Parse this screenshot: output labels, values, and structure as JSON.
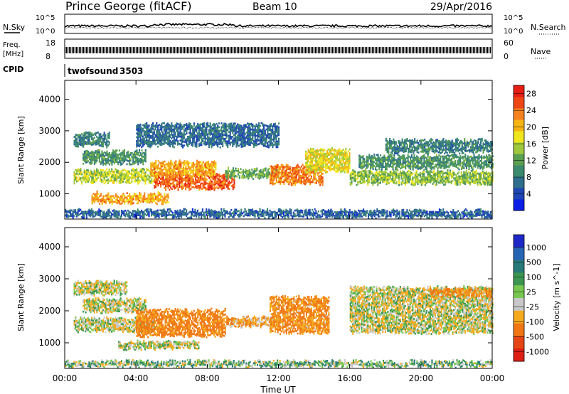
{
  "header": {
    "station": "Prince George (fitACF)",
    "beam": "Beam 10",
    "date": "29/Apr/2016"
  },
  "noise_panel": {
    "left_label": "N.Sky",
    "left_ticks": [
      "10^5",
      "10^0"
    ],
    "right_ticks": [
      "10^5",
      "10^0"
    ],
    "right_label": "N.Search"
  },
  "freq_panel": {
    "label_line1": "Freq.",
    "label_line2": "[MHz]",
    "left_ticks": [
      "18",
      "8"
    ],
    "right_ticks": [
      "60",
      "0"
    ],
    "right_label": "Nave"
  },
  "cpid": {
    "label": "CPID",
    "name": "twofsound",
    "value": "3503"
  },
  "colors": {
    "power": [
      "#0a1ee6",
      "#1e46b4",
      "#2f6e8c",
      "#3c8a6e",
      "#5aa050",
      "#a0c83c",
      "#f0e61e",
      "#f5b414",
      "#f5821e",
      "#ee4614",
      "#e61e14"
    ],
    "velocity_pos": [
      "#1e28c8",
      "#2864b4",
      "#287a78",
      "#3c9650",
      "#78c850"
    ],
    "velocity_ground": "#c8c8c8",
    "velocity_neg": [
      "#f5aa1e",
      "#f07814",
      "#e64614",
      "#dc1e14"
    ]
  },
  "chart_data": [
    {
      "type": "heatmap",
      "name": "power",
      "ylabel": "Slant Range [km]",
      "yticks": [
        1000,
        2000,
        3000,
        4000
      ],
      "ylim": [
        200,
        4600
      ],
      "xlim": [
        0,
        24
      ],
      "colorbar_label": "Power [dB]",
      "colorbar_ticks": [
        4,
        8,
        12,
        16,
        20,
        24,
        28
      ],
      "colorbar_range": [
        0,
        30
      ],
      "bands": [
        {
          "t": [
            0.5,
            5.0
          ],
          "range": [
            1350,
            1750
          ],
          "power": 16
        },
        {
          "t": [
            1.0,
            4.5
          ],
          "range": [
            1950,
            2350
          ],
          "power": 10
        },
        {
          "t": [
            0.5,
            2.5
          ],
          "range": [
            2500,
            2900
          ],
          "power": 8
        },
        {
          "t": [
            5.0,
            9.5
          ],
          "range": [
            1150,
            1600
          ],
          "power": 26
        },
        {
          "t": [
            4.8,
            8.5
          ],
          "range": [
            1550,
            2000
          ],
          "power": 22
        },
        {
          "t": [
            9.0,
            12.0
          ],
          "range": [
            1500,
            1800
          ],
          "power": 12
        },
        {
          "t": [
            11.5,
            14.5
          ],
          "range": [
            1300,
            1900
          ],
          "power": 24
        },
        {
          "t": [
            13.5,
            16.0
          ],
          "range": [
            1700,
            2400
          ],
          "power": 18
        },
        {
          "t": [
            1.5,
            5.8
          ],
          "range": [
            700,
            1000
          ],
          "power": 22
        },
        {
          "t": [
            16.0,
            24.0
          ],
          "range": [
            1300,
            1700
          ],
          "power": 14
        },
        {
          "t": [
            16.5,
            24.0
          ],
          "range": [
            1800,
            2200
          ],
          "power": 10
        },
        {
          "t": [
            18.0,
            24.0
          ],
          "range": [
            2300,
            2700
          ],
          "power": 8
        },
        {
          "t": [
            4.0,
            12.0
          ],
          "range": [
            2500,
            3200
          ],
          "power": 6
        },
        {
          "t": [
            0.0,
            24.0
          ],
          "range": [
            250,
            450
          ],
          "power": 5
        }
      ]
    },
    {
      "type": "heatmap",
      "name": "velocity",
      "ylabel": "Slant Range [km]",
      "yticks": [
        1000,
        2000,
        3000,
        4000
      ],
      "ylim": [
        200,
        4600
      ],
      "xlim": [
        0,
        24
      ],
      "xticks": [
        "00:00",
        "04:00",
        "08:00",
        "12:00",
        "16:00",
        "20:00",
        "00:00"
      ],
      "xlabel": "Time UT",
      "colorbar_label": "Velocity [m s^-1]",
      "colorbar_ticks": [
        "1000",
        "500",
        "100",
        "25",
        "-25",
        "-100",
        "-500",
        "-1000"
      ],
      "bands": [
        {
          "t": [
            0.5,
            5.0
          ],
          "range": [
            1350,
            1750
          ],
          "velocity": 0
        },
        {
          "t": [
            1.0,
            4.5
          ],
          "range": [
            1950,
            2350
          ],
          "velocity": 0
        },
        {
          "t": [
            0.5,
            3.5
          ],
          "range": [
            2500,
            2900
          ],
          "velocity": 0
        },
        {
          "t": [
            4.0,
            9.0
          ],
          "range": [
            1200,
            2000
          ],
          "velocity": -150
        },
        {
          "t": [
            9.0,
            12.0
          ],
          "range": [
            1500,
            1800
          ],
          "velocity": -80
        },
        {
          "t": [
            11.5,
            14.8
          ],
          "range": [
            1300,
            2400
          ],
          "velocity": -120
        },
        {
          "t": [
            16.0,
            24.0
          ],
          "range": [
            1300,
            2700
          ],
          "velocity": 0
        },
        {
          "t": [
            20.5,
            24.0
          ],
          "range": [
            2450,
            2650
          ],
          "velocity": -110
        },
        {
          "t": [
            3.0,
            7.5
          ],
          "range": [
            800,
            1000
          ],
          "velocity": 0
        },
        {
          "t": [
            0.0,
            24.0
          ],
          "range": [
            250,
            400
          ],
          "velocity": 50
        }
      ]
    }
  ]
}
